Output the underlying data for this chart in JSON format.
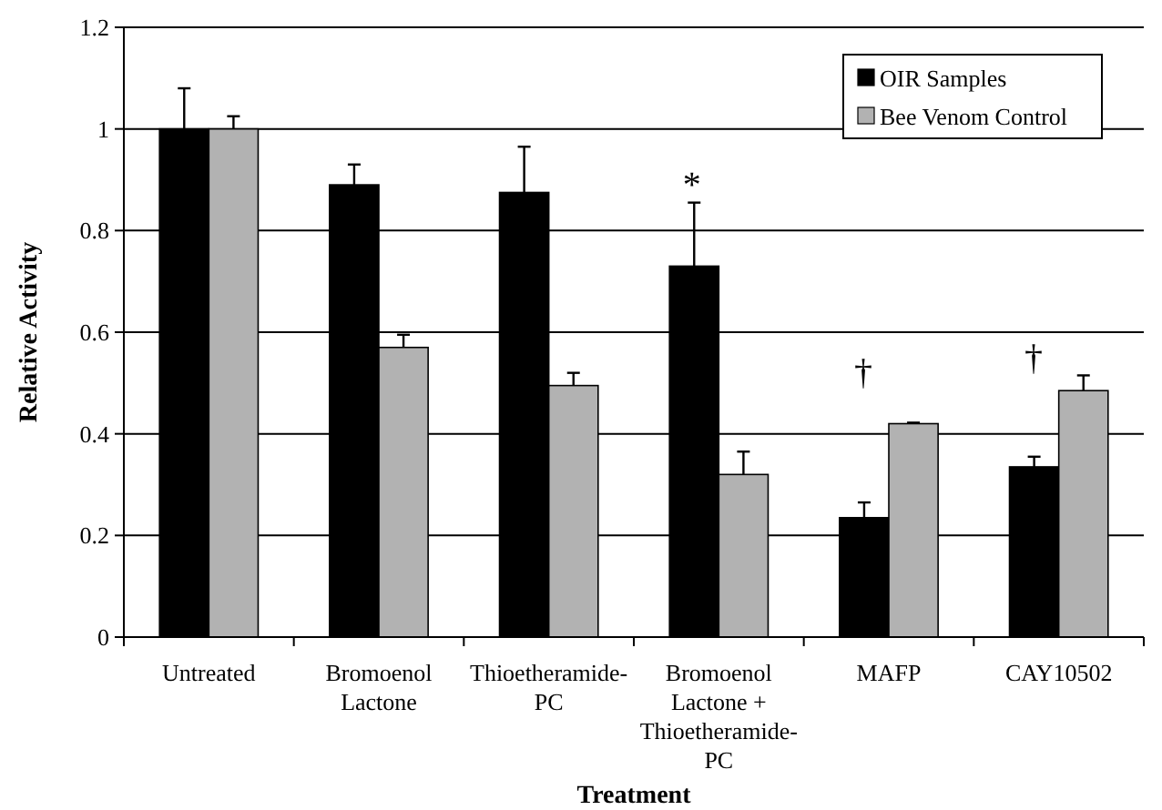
{
  "chart_data": {
    "type": "bar",
    "xlabel": "Treatment",
    "ylabel": "Relative Activity",
    "categories": [
      "Untreated",
      "Bromoenol Lactone",
      "Thioetheramide-PC",
      "Bromoenol Lactone + Thioetheramide-PC",
      "MAFP",
      "CAY10502"
    ],
    "series": [
      {
        "name": "OIR Samples",
        "color": "#000000",
        "values": [
          1.0,
          0.89,
          0.875,
          0.73,
          0.235,
          0.335
        ],
        "errors": [
          [
            1.0,
            1.08
          ],
          [
            0.89,
            0.93
          ],
          [
            0.875,
            0.965
          ],
          [
            0.73,
            0.855
          ],
          [
            0.235,
            0.265
          ],
          [
            0.335,
            0.355
          ]
        ]
      },
      {
        "name": "Bee Venom Control",
        "color": "#b2b2b2",
        "values": [
          1.0,
          0.57,
          0.495,
          0.32,
          0.42,
          0.485
        ],
        "errors": [
          [
            1.0,
            1.025
          ],
          [
            0.57,
            0.595
          ],
          [
            0.495,
            0.52
          ],
          [
            0.32,
            0.365
          ],
          [
            0.42,
            0.422
          ],
          [
            0.485,
            0.515
          ]
        ]
      }
    ],
    "ylim": [
      0,
      1.2
    ],
    "yticks": [
      0,
      0.2,
      0.4,
      0.6,
      0.8,
      1,
      1.2
    ],
    "grid": "y",
    "legend": "top right",
    "annotations": [
      "*",
      "†",
      "†"
    ]
  }
}
